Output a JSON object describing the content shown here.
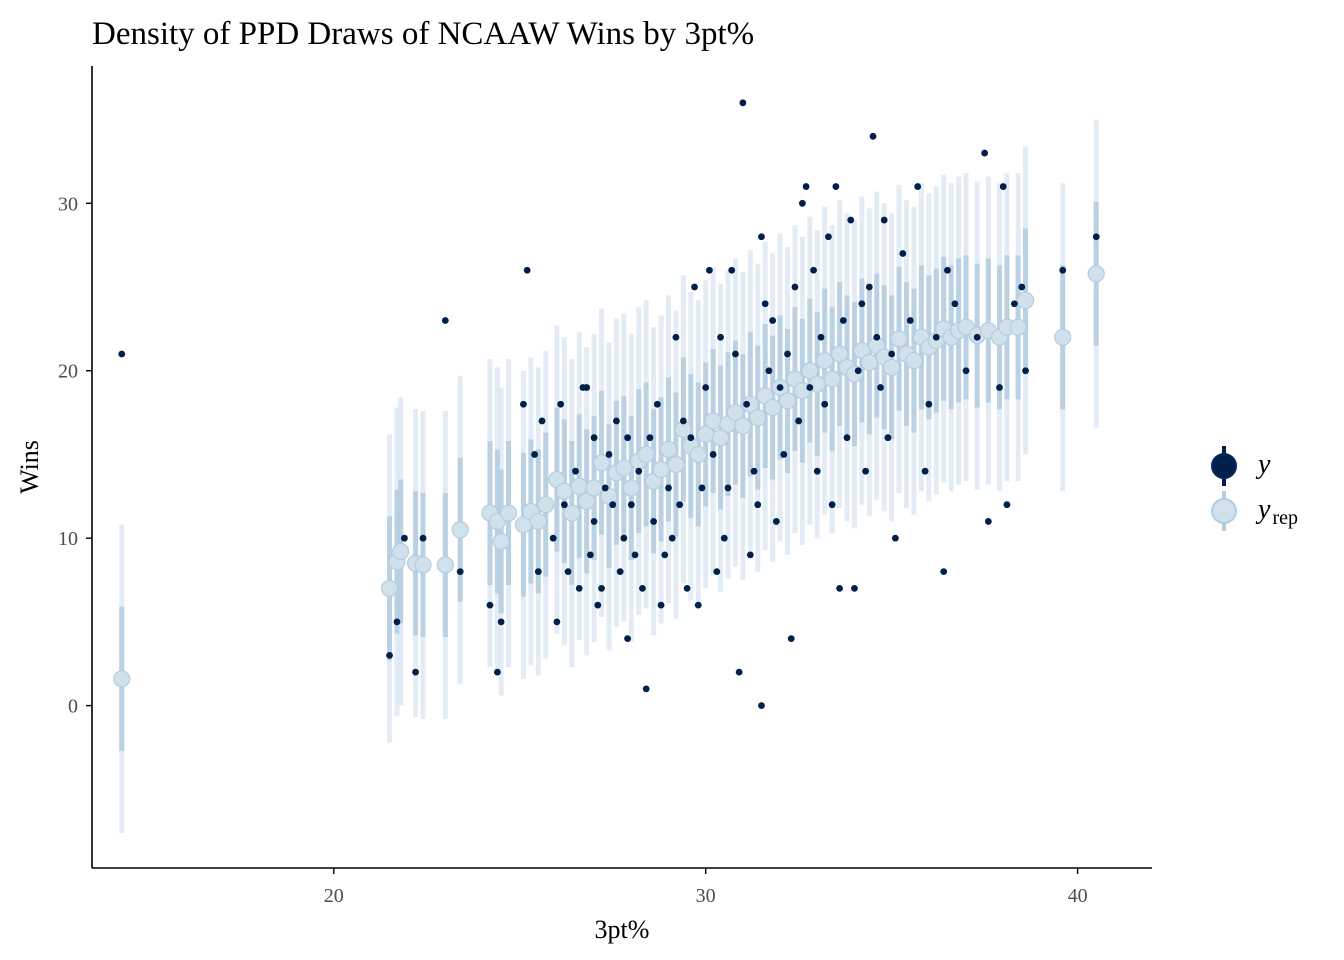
{
  "chart_data": {
    "type": "scatter",
    "title": "Density of PPD Draws of NCAAW Wins by 3pt%",
    "xlabel": "3pt%",
    "ylabel": "Wins",
    "xlim": [
      13.5,
      42
    ],
    "ylim": [
      -9.7,
      38.2
    ],
    "x_ticks": [
      "20",
      "30",
      "40"
    ],
    "y_ticks": [
      "0",
      "10",
      "20",
      "30"
    ],
    "x_tick_values": [
      20,
      30,
      40
    ],
    "y_tick_values": [
      0,
      10,
      20,
      30
    ],
    "grid": false,
    "legend_position": "right",
    "legend": [
      {
        "label": "y",
        "sub": ""
      },
      {
        "label": "y",
        "sub": "rep"
      }
    ],
    "colors": {
      "observed": "#011f4b",
      "predicted_point": "#d1e1ec",
      "predicted_point_stroke": "#b3cde0",
      "inner_interval": "#b3cde0",
      "outer_interval": "#d9e6f2",
      "axis": "#000000",
      "tick_label": "#4d4d4d"
    },
    "series": [
      {
        "name": "y",
        "points": [
          [
            14.3,
            21
          ],
          [
            21.5,
            3
          ],
          [
            21.7,
            5
          ],
          [
            21.9,
            10
          ],
          [
            22.2,
            2
          ],
          [
            22.4,
            10
          ],
          [
            23.0,
            23
          ],
          [
            23.4,
            8
          ],
          [
            24.2,
            6
          ],
          [
            24.4,
            2
          ],
          [
            24.5,
            5
          ],
          [
            25.1,
            18
          ],
          [
            25.2,
            26
          ],
          [
            25.4,
            15
          ],
          [
            25.5,
            8
          ],
          [
            25.6,
            17
          ],
          [
            25.9,
            10
          ],
          [
            26.0,
            5
          ],
          [
            26.1,
            18
          ],
          [
            26.2,
            12
          ],
          [
            26.3,
            8
          ],
          [
            26.5,
            14
          ],
          [
            26.6,
            7
          ],
          [
            26.7,
            19
          ],
          [
            26.8,
            19
          ],
          [
            26.9,
            9
          ],
          [
            27.0,
            11
          ],
          [
            27.0,
            16
          ],
          [
            27.1,
            6
          ],
          [
            27.2,
            7
          ],
          [
            27.3,
            13
          ],
          [
            27.4,
            15
          ],
          [
            27.5,
            12
          ],
          [
            27.6,
            17
          ],
          [
            27.7,
            8
          ],
          [
            27.8,
            10
          ],
          [
            27.9,
            4
          ],
          [
            27.9,
            16
          ],
          [
            28.0,
            12
          ],
          [
            28.1,
            9
          ],
          [
            28.2,
            14
          ],
          [
            28.3,
            7
          ],
          [
            28.4,
            1
          ],
          [
            28.5,
            16
          ],
          [
            28.6,
            11
          ],
          [
            28.7,
            18
          ],
          [
            28.8,
            6
          ],
          [
            28.9,
            9
          ],
          [
            29.0,
            13
          ],
          [
            29.1,
            10
          ],
          [
            29.2,
            22
          ],
          [
            29.3,
            12
          ],
          [
            29.4,
            17
          ],
          [
            29.5,
            7
          ],
          [
            29.6,
            16
          ],
          [
            29.7,
            25
          ],
          [
            29.8,
            6
          ],
          [
            29.9,
            13
          ],
          [
            30.0,
            19
          ],
          [
            30.1,
            26
          ],
          [
            30.2,
            15
          ],
          [
            30.3,
            8
          ],
          [
            30.4,
            22
          ],
          [
            30.5,
            10
          ],
          [
            30.6,
            13
          ],
          [
            30.7,
            26
          ],
          [
            30.8,
            21
          ],
          [
            30.9,
            2
          ],
          [
            31.0,
            36
          ],
          [
            31.1,
            18
          ],
          [
            31.2,
            9
          ],
          [
            31.3,
            14
          ],
          [
            31.4,
            12
          ],
          [
            31.5,
            0
          ],
          [
            31.5,
            28
          ],
          [
            31.6,
            24
          ],
          [
            31.7,
            20
          ],
          [
            31.8,
            23
          ],
          [
            31.9,
            11
          ],
          [
            32.0,
            19
          ],
          [
            32.1,
            15
          ],
          [
            32.2,
            21
          ],
          [
            32.3,
            4
          ],
          [
            32.4,
            25
          ],
          [
            32.5,
            17
          ],
          [
            32.6,
            30
          ],
          [
            32.7,
            31
          ],
          [
            32.8,
            19
          ],
          [
            32.9,
            26
          ],
          [
            33.0,
            14
          ],
          [
            33.1,
            22
          ],
          [
            33.2,
            18
          ],
          [
            33.3,
            28
          ],
          [
            33.4,
            12
          ],
          [
            33.5,
            31
          ],
          [
            33.6,
            7
          ],
          [
            33.7,
            23
          ],
          [
            33.8,
            16
          ],
          [
            33.9,
            29
          ],
          [
            34.0,
            7
          ],
          [
            34.1,
            20
          ],
          [
            34.2,
            24
          ],
          [
            34.3,
            14
          ],
          [
            34.4,
            25
          ],
          [
            34.5,
            34
          ],
          [
            34.6,
            22
          ],
          [
            34.7,
            19
          ],
          [
            34.8,
            29
          ],
          [
            34.9,
            16
          ],
          [
            35.0,
            21
          ],
          [
            35.1,
            10
          ],
          [
            35.3,
            27
          ],
          [
            35.5,
            23
          ],
          [
            35.7,
            31
          ],
          [
            35.9,
            14
          ],
          [
            36.0,
            18
          ],
          [
            36.2,
            22
          ],
          [
            36.4,
            8
          ],
          [
            36.5,
            26
          ],
          [
            36.7,
            24
          ],
          [
            37.0,
            20
          ],
          [
            37.3,
            22
          ],
          [
            37.5,
            33
          ],
          [
            37.6,
            11
          ],
          [
            37.9,
            19
          ],
          [
            38.0,
            31
          ],
          [
            38.1,
            12
          ],
          [
            38.3,
            24
          ],
          [
            38.5,
            25
          ],
          [
            38.6,
            20
          ],
          [
            39.6,
            26
          ],
          [
            40.5,
            28
          ]
        ]
      },
      {
        "name": "y_rep",
        "points": [
          [
            14.3,
            1.6
          ],
          [
            21.5,
            7.0
          ],
          [
            21.7,
            8.6
          ],
          [
            21.8,
            9.2
          ],
          [
            22.2,
            8.5
          ],
          [
            22.4,
            8.4
          ],
          [
            23.0,
            8.4
          ],
          [
            23.4,
            10.5
          ],
          [
            24.2,
            11.5
          ],
          [
            24.4,
            11.0
          ],
          [
            24.5,
            9.8
          ],
          [
            24.7,
            11.5
          ],
          [
            25.1,
            10.8
          ],
          [
            25.3,
            11.6
          ],
          [
            25.5,
            11.0
          ],
          [
            25.7,
            12.0
          ],
          [
            26.0,
            13.5
          ],
          [
            26.2,
            12.8
          ],
          [
            26.4,
            11.5
          ],
          [
            26.6,
            13.1
          ],
          [
            26.8,
            12.2
          ],
          [
            27.0,
            13.0
          ],
          [
            27.2,
            14.5
          ],
          [
            27.4,
            12.5
          ],
          [
            27.6,
            13.9
          ],
          [
            27.8,
            14.2
          ],
          [
            28.0,
            13.0
          ],
          [
            28.2,
            14.6
          ],
          [
            28.4,
            15.0
          ],
          [
            28.6,
            13.4
          ],
          [
            28.8,
            14.1
          ],
          [
            29.0,
            15.3
          ],
          [
            29.2,
            14.4
          ],
          [
            29.4,
            16.5
          ],
          [
            29.6,
            15.5
          ],
          [
            29.8,
            15.0
          ],
          [
            30.0,
            16.2
          ],
          [
            30.2,
            17.0
          ],
          [
            30.4,
            16.0
          ],
          [
            30.6,
            16.8
          ],
          [
            30.8,
            17.5
          ],
          [
            31.0,
            16.7
          ],
          [
            31.2,
            18.0
          ],
          [
            31.4,
            17.2
          ],
          [
            31.6,
            18.5
          ],
          [
            31.8,
            17.8
          ],
          [
            32.0,
            19.0
          ],
          [
            32.2,
            18.2
          ],
          [
            32.4,
            19.5
          ],
          [
            32.6,
            18.8
          ],
          [
            32.8,
            20.0
          ],
          [
            33.0,
            19.2
          ],
          [
            33.2,
            20.6
          ],
          [
            33.4,
            19.5
          ],
          [
            33.6,
            21.0
          ],
          [
            33.8,
            20.2
          ],
          [
            34.0,
            19.8
          ],
          [
            34.2,
            21.2
          ],
          [
            34.4,
            20.5
          ],
          [
            34.6,
            21.5
          ],
          [
            34.8,
            20.8
          ],
          [
            35.0,
            20.2
          ],
          [
            35.2,
            21.9
          ],
          [
            35.4,
            21.0
          ],
          [
            35.6,
            20.6
          ],
          [
            35.8,
            22.0
          ],
          [
            36.0,
            21.4
          ],
          [
            36.2,
            21.8
          ],
          [
            36.4,
            22.5
          ],
          [
            36.6,
            22.0
          ],
          [
            36.8,
            22.4
          ],
          [
            37.0,
            22.6
          ],
          [
            37.3,
            22.1
          ],
          [
            37.6,
            22.4
          ],
          [
            37.9,
            22.0
          ],
          [
            38.1,
            22.6
          ],
          [
            38.4,
            22.6
          ],
          [
            38.6,
            24.2
          ],
          [
            39.6,
            22.0
          ],
          [
            40.5,
            25.8
          ]
        ]
      }
    ]
  }
}
